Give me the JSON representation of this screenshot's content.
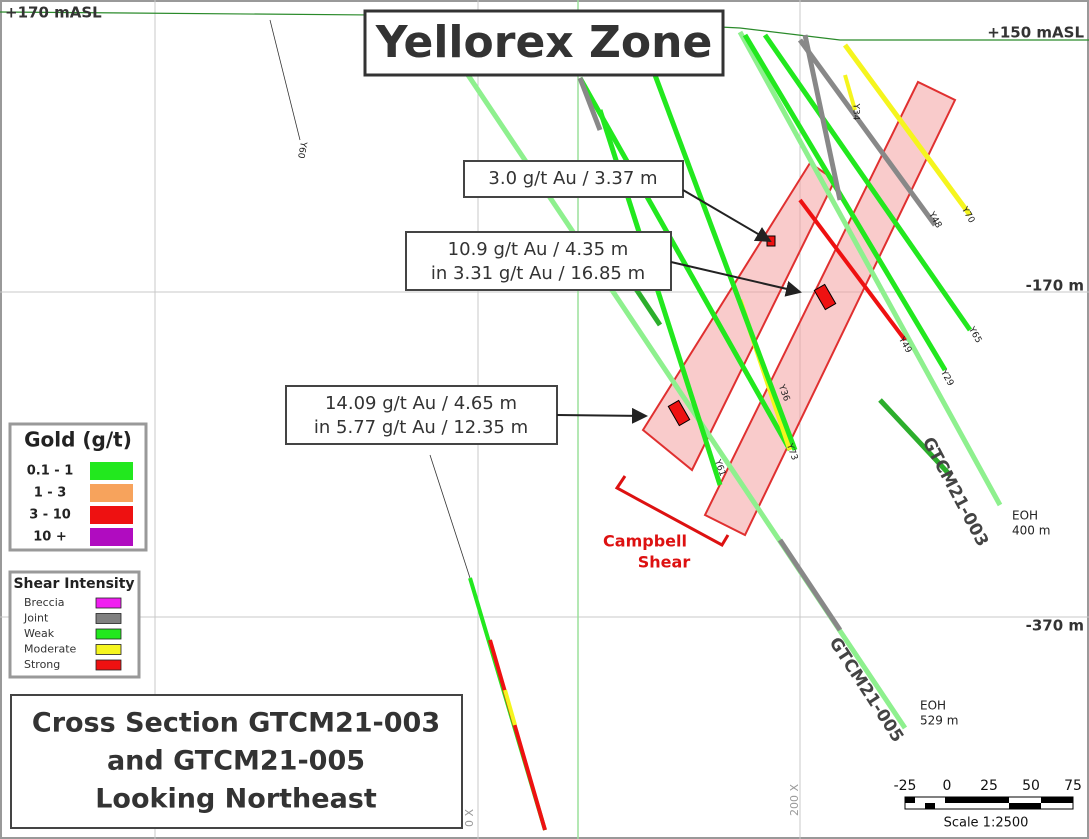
{
  "elevation_labels": {
    "top_left": "+170  mASL",
    "top_right": "+150  mASL",
    "mid": "-170  m",
    "low": "-370  m"
  },
  "title": "Yellorex Zone",
  "callouts": [
    {
      "lines": [
        "3.0 g/t Au / 3.37 m"
      ]
    },
    {
      "lines": [
        "10.9 g/t Au / 4.35 m",
        "in 3.31 g/t Au / 16.85 m"
      ]
    },
    {
      "lines": [
        "14.09 g/t Au / 4.65 m",
        "in 5.77 g/t Au / 12.35 m"
      ]
    }
  ],
  "shear_zone_label": [
    "Campbell",
    "Shear"
  ],
  "drill_holes": [
    {
      "name": "GTCM21-003",
      "end": [
        "EOH",
        "400 m"
      ]
    },
    {
      "name": "GTCM21-005",
      "end": [
        "EOH",
        "529 m"
      ]
    }
  ],
  "hole_labels": [
    "Y60",
    "Y34",
    "Y48",
    "Y70",
    "Y65",
    "Y49",
    "Y29",
    "Y36",
    "Y73",
    "Y61"
  ],
  "grid_labels": [
    "0 X",
    "200 X"
  ],
  "gold_legend": {
    "title": "Gold (g/t)",
    "items": [
      {
        "label": "0.1 - 1",
        "color": "#22e81e"
      },
      {
        "label": "1 - 3",
        "color": "#f7a35c"
      },
      {
        "label": "3 - 10",
        "color": "#ee1111"
      },
      {
        "label": "10 +",
        "color": "#b00cc0"
      }
    ]
  },
  "shear_legend": {
    "title": "Shear Intensity",
    "items": [
      {
        "label": "Breccia",
        "color": "#f01ef0"
      },
      {
        "label": "Joint",
        "color": "#808080"
      },
      {
        "label": "Weak",
        "color": "#22e81e"
      },
      {
        "label": "Moderate",
        "color": "#f5f51e"
      },
      {
        "label": "Strong",
        "color": "#ee1111"
      }
    ]
  },
  "section_title": [
    "Cross Section GTCM21-003",
    "and GTCM21-005",
    "Looking Northeast"
  ],
  "scale": {
    "ticks": [
      -25,
      0,
      25,
      50,
      75
    ],
    "label": "Scale 1:2500"
  }
}
